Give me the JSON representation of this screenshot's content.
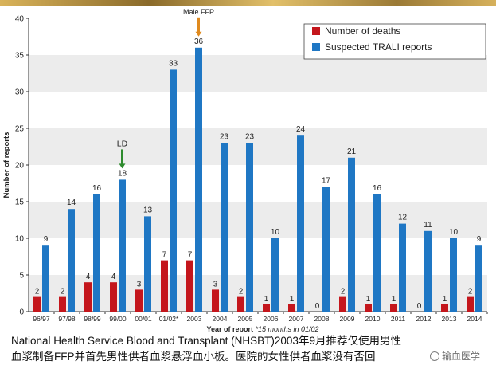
{
  "chart_data": {
    "type": "bar",
    "categories": [
      "96/97",
      "97/98",
      "98/99",
      "99/00",
      "00/01",
      "01/02*",
      "2003",
      "2004",
      "2005",
      "2006",
      "2007",
      "2008",
      "2009",
      "2010",
      "2011",
      "2012",
      "2013",
      "2014"
    ],
    "series": [
      {
        "name": "Number of deaths",
        "color": "#c4161c",
        "values": [
          2,
          2,
          4,
          4,
          3,
          7,
          7,
          3,
          2,
          1,
          1,
          0,
          2,
          1,
          1,
          0,
          1,
          2
        ]
      },
      {
        "name": "Suspected TRALI reports",
        "color": "#1f77c4",
        "values": [
          9,
          14,
          16,
          18,
          13,
          33,
          36,
          23,
          23,
          10,
          24,
          17,
          21,
          16,
          12,
          11,
          10,
          9
        ]
      }
    ],
    "ylabel": "Number of reports",
    "xlabel": "Year of report",
    "xlabel_note": "*15 months in 01/02",
    "ylim": [
      0,
      40
    ],
    "yticks": [
      0,
      5,
      10,
      15,
      20,
      25,
      30,
      35,
      40
    ],
    "legend_position": "top-right",
    "grid": "alternating horizontal bands",
    "annotations": [
      {
        "text": "LD",
        "category": "99/00",
        "arrow_color": "#2e8b2e"
      },
      {
        "text": "Male FFP",
        "category": "2003",
        "arrow_color": "#e08a1e"
      }
    ]
  },
  "caption": {
    "line1": "National Health Service Blood and Transplant (NHSBT)2003年9月推荐仅使用男性",
    "line2": "血浆制备FFP并首先男性供者血浆悬浮血小板。医院的女性供者血浆没有否回"
  },
  "watermark": {
    "text": "输血医学"
  }
}
